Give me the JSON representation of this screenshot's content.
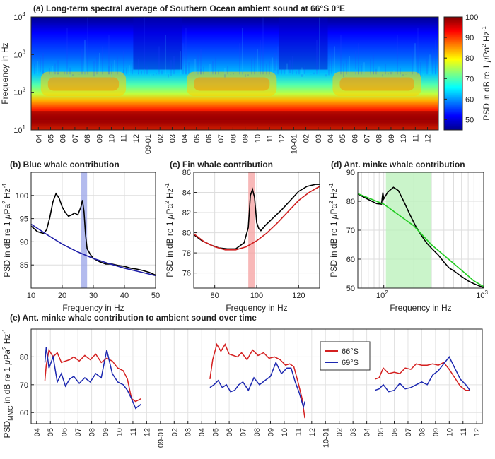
{
  "chart_data": [
    {
      "id": "a",
      "type": "heatmap",
      "title": "(a) Long-term spectral average of Southern Ocean ambient sound at 66°S 0°E",
      "ylabel": "Frequency in Hz",
      "colorbar_label": "PSD in dB re 1 μPa² Hz⁻¹",
      "ylim": [
        10,
        10000
      ],
      "yscale": "log",
      "y_ticks": [
        10,
        100,
        1000,
        10000
      ],
      "y_tick_labels": [
        "10",
        "10",
        "10",
        "10"
      ],
      "y_tick_exponents": [
        "1",
        "2",
        "3",
        "4"
      ],
      "x_tick_labels": [
        "04",
        "05",
        "06",
        "07",
        "08",
        "09",
        "10",
        "11",
        "12",
        "09-01",
        "02",
        "03",
        "04",
        "05",
        "06",
        "07",
        "08",
        "09",
        "10",
        "11",
        "12",
        "10-01",
        "02",
        "03",
        "04",
        "05",
        "06",
        "07",
        "08",
        "09",
        "10",
        "11",
        "12"
      ],
      "colorbar_ticks": [
        "50",
        "60",
        "70",
        "80",
        "90",
        "100"
      ],
      "colorbar_range": [
        45,
        100
      ],
      "colormap": [
        "#00008f",
        "#0000ff",
        "#0080ff",
        "#00ffff",
        "#80ff80",
        "#ffff00",
        "#ff8000",
        "#ff0000",
        "#800000"
      ]
    },
    {
      "id": "b",
      "type": "line",
      "title": "(b) Blue whale contribution",
      "xlabel": "Frequency in Hz",
      "ylabel": "PSD in dB re 1 μPa² Hz⁻¹",
      "xlim": [
        10,
        50
      ],
      "ylim": [
        80,
        105
      ],
      "x_ticks": [
        10,
        20,
        30,
        40,
        50
      ],
      "y_ticks": [
        85,
        90,
        95,
        100
      ],
      "highlight_band": [
        26,
        28
      ],
      "highlight_color": "#9aa4e8",
      "series": [
        {
          "color": "#000000",
          "x": [
            10,
            12,
            14,
            15,
            16,
            17,
            18,
            19,
            20,
            21,
            22,
            23,
            24,
            25,
            26,
            26.5,
            27,
            27.5,
            28,
            29,
            30,
            32,
            34,
            36,
            38,
            40,
            42,
            44,
            46,
            48,
            50
          ],
          "y": [
            93.4,
            92.2,
            91.8,
            92.6,
            95.2,
            98.6,
            100.4,
            99.4,
            97.5,
            96.3,
            95.5,
            95.8,
            96.2,
            95.8,
            97.5,
            99,
            96.5,
            91.5,
            88.5,
            87.3,
            86.4,
            85.7,
            85.2,
            85.2,
            84.9,
            84.7,
            84.3,
            84.1,
            83.8,
            83.4,
            82.8
          ]
        },
        {
          "color": "#1f1fa8",
          "x": [
            10,
            15,
            20,
            25,
            30,
            35,
            40,
            45,
            50
          ],
          "y": [
            93.8,
            91.6,
            89.5,
            87.8,
            86.4,
            85.3,
            84.3,
            83.5,
            82.7
          ]
        }
      ]
    },
    {
      "id": "c",
      "type": "line",
      "title": "(c) Fin whale contribution",
      "xlabel": "Frequency in Hz",
      "ylabel": "PSD in dB re 1 μPa² Hz⁻¹",
      "xlim": [
        70,
        130
      ],
      "ylim": [
        74.5,
        86
      ],
      "x_ticks": [
        80,
        100,
        120
      ],
      "y_ticks": [
        76,
        78,
        80,
        82,
        84,
        86
      ],
      "highlight_band": [
        96,
        99
      ],
      "highlight_color": "#f5a0a0",
      "series": [
        {
          "color": "#000000",
          "x": [
            70,
            74,
            78,
            82,
            86,
            90,
            94,
            96,
            97,
            98,
            99,
            100,
            101,
            102,
            104,
            108,
            112,
            116,
            120,
            124,
            128,
            130
          ],
          "y": [
            79.8,
            79.2,
            78.8,
            78.5,
            78.4,
            78.4,
            79,
            80.5,
            83.7,
            84.3,
            83.5,
            81,
            80.4,
            80.2,
            80.7,
            81.5,
            82.3,
            83.2,
            84.1,
            84.6,
            84.8,
            84.8
          ]
        },
        {
          "color": "#d02020",
          "x": [
            70,
            75,
            80,
            85,
            90,
            95,
            100,
            105,
            110,
            115,
            120,
            125,
            130
          ],
          "y": [
            79.9,
            79.1,
            78.6,
            78.3,
            78.3,
            78.6,
            79.2,
            80,
            81,
            82.1,
            83.2,
            84,
            84.6
          ]
        }
      ]
    },
    {
      "id": "d",
      "type": "line",
      "title": "(d) Ant. minke whale contribution",
      "xlabel": "Frequency in Hz",
      "ylabel": "PSD in dB re 1 μPa² Hz⁻¹",
      "xscale": "log",
      "xlim": [
        55,
        1000
      ],
      "ylim": [
        50,
        90
      ],
      "x_ticks": [
        100,
        1000
      ],
      "x_tick_labels": [
        "10",
        "10"
      ],
      "x_tick_exponents": [
        "2",
        "3"
      ],
      "y_ticks": [
        50,
        60,
        70,
        80,
        90
      ],
      "highlight_band": [
        105,
        300
      ],
      "highlight_color": "#b8f0b8",
      "series": [
        {
          "color": "#000000",
          "x": [
            55,
            70,
            85,
            95,
            98,
            100,
            110,
            125,
            140,
            160,
            185,
            210,
            240,
            270,
            300,
            350,
            400,
            450,
            500,
            600,
            700,
            800,
            900,
            1000
          ],
          "y": [
            82.5,
            80.6,
            79.2,
            79,
            83,
            80.8,
            83.2,
            84.8,
            83.7,
            79.7,
            75,
            71.2,
            68,
            65.5,
            63.8,
            61.5,
            59,
            57,
            56,
            54,
            52.5,
            51.5,
            50.8,
            50.2
          ]
        },
        {
          "color": "#22cc22",
          "x": [
            55,
            100,
            200,
            300,
            500,
            800,
            1000
          ],
          "y": [
            82.6,
            79,
            71.5,
            65,
            58.5,
            52.5,
            50.5
          ]
        }
      ]
    },
    {
      "id": "e",
      "type": "line",
      "title": "(e) Ant. minke whale contribution to ambient sound over time",
      "ylabel": "PSD",
      "ylabel_sub": "MMC",
      "ylabel_rest": " in dB re 1 μPa² Hz⁻¹",
      "ylim": [
        56,
        90
      ],
      "y_ticks": [
        60,
        70,
        80
      ],
      "x_tick_labels": [
        "04",
        "05",
        "06",
        "07",
        "08",
        "09",
        "10",
        "11",
        "12",
        "09-01",
        "02",
        "03",
        "04",
        "05",
        "06",
        "07",
        "08",
        "09",
        "10",
        "11",
        "12",
        "10-01",
        "02",
        "03",
        "04",
        "05",
        "06",
        "07",
        "08",
        "09",
        "10",
        "11",
        "12"
      ],
      "legend_position": "upper-right",
      "series": [
        {
          "name": "66°S",
          "color": "#d42020",
          "segments": [
            {
              "x": [
                1.0,
                1.1,
                1.3,
                1.6,
                1.9,
                2.2,
                2.5,
                2.8,
                3.1,
                3.5,
                3.9,
                4.3,
                4.7,
                5.1,
                5.5,
                5.9,
                6.3,
                6.7,
                7.0,
                7.3,
                7.6,
                8.0
              ],
              "y": [
                71.5,
                77,
                82.5,
                80,
                81.5,
                78,
                78.5,
                79,
                80,
                78.5,
                80.5,
                79,
                81,
                78,
                79.5,
                78.5,
                76,
                75,
                72,
                65,
                64,
                65
              ]
            },
            {
              "x": [
                13.0,
                13.2,
                13.5,
                13.8,
                14.1,
                14.4,
                14.7,
                15.0,
                15.3,
                15.7,
                16.1,
                16.5,
                16.9,
                17.3,
                17.7,
                18.1,
                18.5,
                18.8,
                19.1,
                19.4,
                19.7,
                19.9
              ],
              "y": [
                72,
                79,
                84.5,
                82,
                84.5,
                81,
                80.5,
                80,
                81.5,
                79,
                82.5,
                80.5,
                81.5,
                79.5,
                80,
                79,
                77,
                77.5,
                76.5,
                71,
                65,
                58
              ]
            },
            {
              "x": [
                25.0,
                25.3,
                25.6,
                26.0,
                26.4,
                26.8,
                27.2,
                27.6,
                28.0,
                28.4,
                28.8,
                29.2,
                29.6,
                30.0,
                30.4,
                30.8,
                31.2,
                31.6,
                31.9
              ],
              "y": [
                72,
                72.5,
                76,
                74,
                74.5,
                74,
                76,
                75.5,
                77.5,
                77,
                77,
                77.5,
                77,
                78,
                75.5,
                72.5,
                69.5,
                68,
                68
              ]
            }
          ]
        },
        {
          "name": "69°S",
          "color": "#1c28b0",
          "segments": [
            {
              "x": [
                1.0,
                1.1,
                1.3,
                1.6,
                1.9,
                2.2,
                2.5,
                2.8,
                3.1,
                3.5,
                3.9,
                4.3,
                4.7,
                5.1,
                5.5,
                5.9,
                6.3,
                6.7,
                7.0,
                7.3,
                7.6,
                8.0
              ],
              "y": [
                78,
                83.5,
                76,
                80,
                71,
                74,
                69.5,
                72,
                73,
                70.5,
                72.5,
                71,
                74,
                72.5,
                82.5,
                74,
                71,
                70,
                68,
                65,
                61.5,
                63
              ]
            },
            {
              "x": [
                13.0,
                13.3,
                13.6,
                13.9,
                14.2,
                14.5,
                14.8,
                15.1,
                15.4,
                15.8,
                16.2,
                16.6,
                17.0,
                17.4,
                17.8,
                18.2,
                18.6,
                18.9,
                19.2,
                19.5,
                19.8,
                19.9
              ],
              "y": [
                69,
                70,
                71.5,
                69,
                70,
                67.5,
                68,
                70,
                71,
                68,
                72.5,
                70,
                71.5,
                73,
                78,
                74,
                76,
                76,
                71,
                67,
                62,
                64
              ]
            },
            {
              "x": [
                25.0,
                25.3,
                25.6,
                26.0,
                26.4,
                26.8,
                27.2,
                27.6,
                28.0,
                28.4,
                28.8,
                29.2,
                29.6,
                30.0,
                30.4,
                30.8,
                31.2,
                31.6,
                31.9
              ],
              "y": [
                68,
                68.5,
                70,
                67.5,
                68,
                70.5,
                68.5,
                69,
                70,
                71,
                70,
                73.5,
                75,
                77.5,
                80,
                76,
                72,
                70,
                68
              ]
            }
          ]
        }
      ]
    }
  ]
}
